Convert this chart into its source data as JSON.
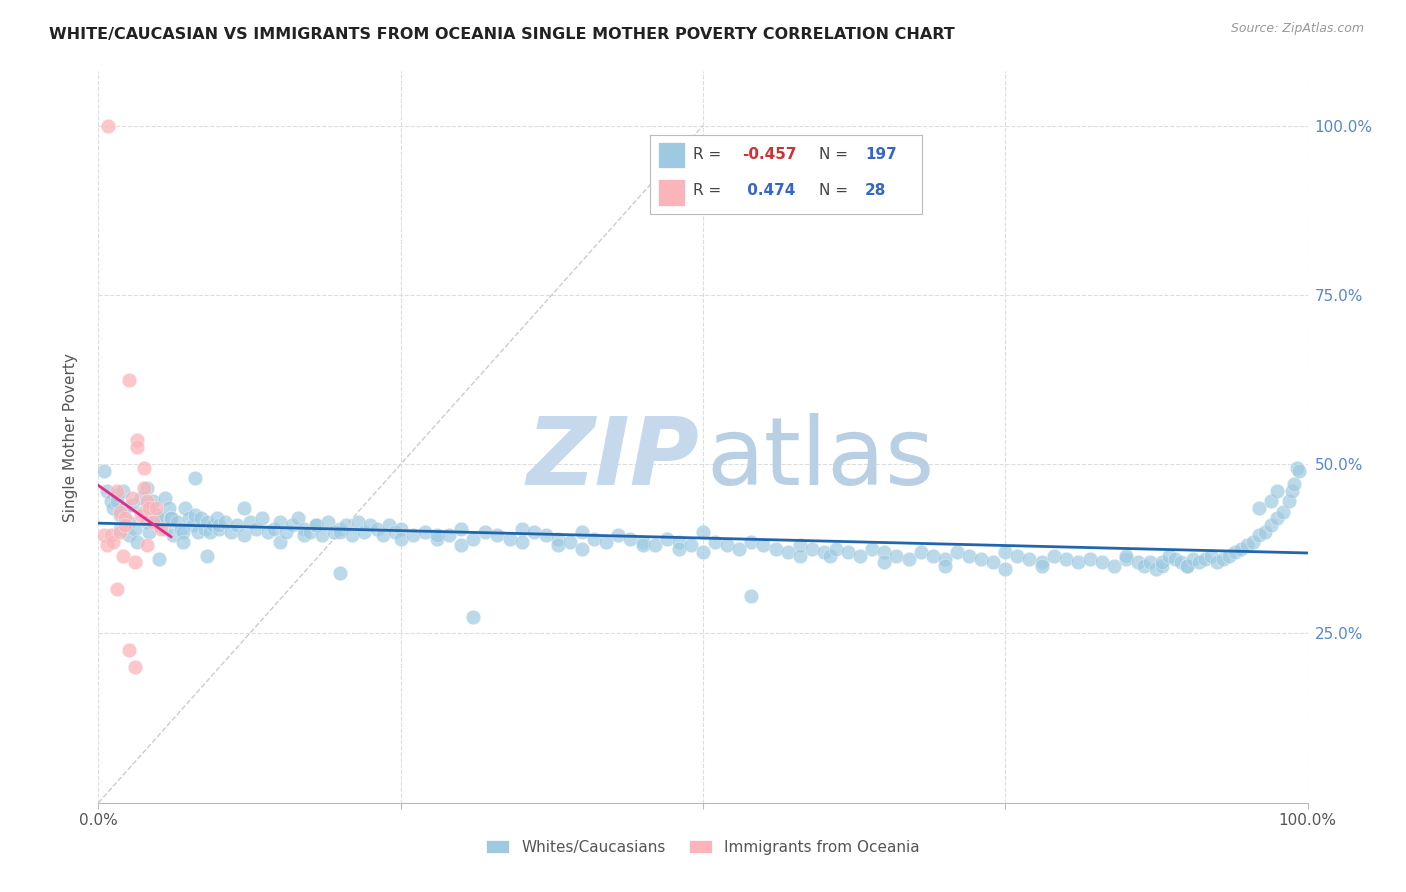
{
  "title": "WHITE/CAUCASIAN VS IMMIGRANTS FROM OCEANIA SINGLE MOTHER POVERTY CORRELATION CHART",
  "source": "Source: ZipAtlas.com",
  "ylabel": "Single Mother Poverty",
  "ytick_labels": [
    "25.0%",
    "50.0%",
    "75.0%",
    "100.0%"
  ],
  "ytick_values": [
    0.25,
    0.5,
    0.75,
    1.0
  ],
  "xlim": [
    0.0,
    1.0
  ],
  "ylim": [
    0.0,
    1.08
  ],
  "legend_label1": "Whites/Caucasians",
  "legend_label2": "Immigrants from Oceania",
  "r1": -0.457,
  "n1": 197,
  "r2": 0.474,
  "n2": 28,
  "blue_color": "#9ecae1",
  "pink_color": "#fbb4b9",
  "blue_line_color": "#2166ac",
  "pink_line_color": "#e7298a",
  "watermark_zip_color": "#c6d9ec",
  "watermark_atlas_color": "#b8cfe4",
  "blue_scatter": [
    [
      0.005,
      0.49
    ],
    [
      0.007,
      0.46
    ],
    [
      0.01,
      0.445
    ],
    [
      0.012,
      0.435
    ],
    [
      0.015,
      0.455
    ],
    [
      0.015,
      0.445
    ],
    [
      0.018,
      0.425
    ],
    [
      0.018,
      0.405
    ],
    [
      0.02,
      0.46
    ],
    [
      0.022,
      0.435
    ],
    [
      0.025,
      0.415
    ],
    [
      0.025,
      0.395
    ],
    [
      0.028,
      0.44
    ],
    [
      0.03,
      0.405
    ],
    [
      0.032,
      0.385
    ],
    [
      0.035,
      0.45
    ],
    [
      0.038,
      0.43
    ],
    [
      0.04,
      0.415
    ],
    [
      0.04,
      0.465
    ],
    [
      0.042,
      0.4
    ],
    [
      0.045,
      0.445
    ],
    [
      0.048,
      0.425
    ],
    [
      0.05,
      0.41
    ],
    [
      0.05,
      0.36
    ],
    [
      0.052,
      0.42
    ],
    [
      0.055,
      0.405
    ],
    [
      0.055,
      0.45
    ],
    [
      0.058,
      0.435
    ],
    [
      0.06,
      0.42
    ],
    [
      0.06,
      0.42
    ],
    [
      0.062,
      0.395
    ],
    [
      0.065,
      0.415
    ],
    [
      0.068,
      0.405
    ],
    [
      0.07,
      0.4
    ],
    [
      0.07,
      0.385
    ],
    [
      0.072,
      0.435
    ],
    [
      0.075,
      0.42
    ],
    [
      0.078,
      0.41
    ],
    [
      0.08,
      0.425
    ],
    [
      0.08,
      0.48
    ],
    [
      0.082,
      0.4
    ],
    [
      0.085,
      0.42
    ],
    [
      0.088,
      0.405
    ],
    [
      0.09,
      0.415
    ],
    [
      0.09,
      0.365
    ],
    [
      0.092,
      0.4
    ],
    [
      0.095,
      0.41
    ],
    [
      0.098,
      0.42
    ],
    [
      0.1,
      0.405
    ],
    [
      0.1,
      0.41
    ],
    [
      0.105,
      0.415
    ],
    [
      0.11,
      0.4
    ],
    [
      0.115,
      0.41
    ],
    [
      0.12,
      0.395
    ],
    [
      0.12,
      0.435
    ],
    [
      0.125,
      0.415
    ],
    [
      0.13,
      0.405
    ],
    [
      0.135,
      0.42
    ],
    [
      0.14,
      0.4
    ],
    [
      0.145,
      0.405
    ],
    [
      0.15,
      0.415
    ],
    [
      0.15,
      0.385
    ],
    [
      0.155,
      0.4
    ],
    [
      0.16,
      0.41
    ],
    [
      0.165,
      0.42
    ],
    [
      0.17,
      0.405
    ],
    [
      0.17,
      0.395
    ],
    [
      0.175,
      0.4
    ],
    [
      0.18,
      0.41
    ],
    [
      0.18,
      0.41
    ],
    [
      0.185,
      0.395
    ],
    [
      0.19,
      0.415
    ],
    [
      0.195,
      0.4
    ],
    [
      0.2,
      0.405
    ],
    [
      0.2,
      0.34
    ],
    [
      0.2,
      0.4
    ],
    [
      0.205,
      0.41
    ],
    [
      0.21,
      0.395
    ],
    [
      0.215,
      0.415
    ],
    [
      0.22,
      0.4
    ],
    [
      0.225,
      0.41
    ],
    [
      0.23,
      0.405
    ],
    [
      0.235,
      0.395
    ],
    [
      0.24,
      0.41
    ],
    [
      0.245,
      0.4
    ],
    [
      0.25,
      0.405
    ],
    [
      0.25,
      0.39
    ],
    [
      0.26,
      0.395
    ],
    [
      0.27,
      0.4
    ],
    [
      0.28,
      0.39
    ],
    [
      0.28,
      0.395
    ],
    [
      0.29,
      0.395
    ],
    [
      0.3,
      0.405
    ],
    [
      0.3,
      0.38
    ],
    [
      0.31,
      0.39
    ],
    [
      0.31,
      0.275
    ],
    [
      0.32,
      0.4
    ],
    [
      0.33,
      0.395
    ],
    [
      0.34,
      0.39
    ],
    [
      0.35,
      0.405
    ],
    [
      0.35,
      0.385
    ],
    [
      0.36,
      0.4
    ],
    [
      0.37,
      0.395
    ],
    [
      0.38,
      0.39
    ],
    [
      0.38,
      0.38
    ],
    [
      0.39,
      0.385
    ],
    [
      0.4,
      0.4
    ],
    [
      0.4,
      0.375
    ],
    [
      0.41,
      0.39
    ],
    [
      0.42,
      0.385
    ],
    [
      0.43,
      0.395
    ],
    [
      0.44,
      0.39
    ],
    [
      0.45,
      0.385
    ],
    [
      0.45,
      0.38
    ],
    [
      0.46,
      0.38
    ],
    [
      0.47,
      0.39
    ],
    [
      0.48,
      0.385
    ],
    [
      0.48,
      0.375
    ],
    [
      0.49,
      0.38
    ],
    [
      0.5,
      0.4
    ],
    [
      0.5,
      0.37
    ],
    [
      0.51,
      0.385
    ],
    [
      0.52,
      0.38
    ],
    [
      0.53,
      0.375
    ],
    [
      0.54,
      0.385
    ],
    [
      0.54,
      0.305
    ],
    [
      0.55,
      0.38
    ],
    [
      0.56,
      0.375
    ],
    [
      0.57,
      0.37
    ],
    [
      0.58,
      0.38
    ],
    [
      0.58,
      0.365
    ],
    [
      0.59,
      0.375
    ],
    [
      0.6,
      0.37
    ],
    [
      0.605,
      0.365
    ],
    [
      0.61,
      0.375
    ],
    [
      0.62,
      0.37
    ],
    [
      0.63,
      0.365
    ],
    [
      0.64,
      0.375
    ],
    [
      0.65,
      0.37
    ],
    [
      0.65,
      0.355
    ],
    [
      0.66,
      0.365
    ],
    [
      0.67,
      0.36
    ],
    [
      0.68,
      0.37
    ],
    [
      0.69,
      0.365
    ],
    [
      0.7,
      0.36
    ],
    [
      0.7,
      0.35
    ],
    [
      0.71,
      0.37
    ],
    [
      0.72,
      0.365
    ],
    [
      0.73,
      0.36
    ],
    [
      0.74,
      0.355
    ],
    [
      0.75,
      0.37
    ],
    [
      0.75,
      0.345
    ],
    [
      0.76,
      0.365
    ],
    [
      0.77,
      0.36
    ],
    [
      0.78,
      0.355
    ],
    [
      0.78,
      0.35
    ],
    [
      0.79,
      0.365
    ],
    [
      0.8,
      0.36
    ],
    [
      0.81,
      0.355
    ],
    [
      0.82,
      0.36
    ],
    [
      0.83,
      0.355
    ],
    [
      0.84,
      0.35
    ],
    [
      0.85,
      0.36
    ],
    [
      0.85,
      0.365
    ],
    [
      0.86,
      0.355
    ],
    [
      0.865,
      0.35
    ],
    [
      0.87,
      0.355
    ],
    [
      0.875,
      0.345
    ],
    [
      0.88,
      0.35
    ],
    [
      0.88,
      0.355
    ],
    [
      0.885,
      0.365
    ],
    [
      0.89,
      0.36
    ],
    [
      0.895,
      0.355
    ],
    [
      0.9,
      0.35
    ],
    [
      0.9,
      0.35
    ],
    [
      0.905,
      0.36
    ],
    [
      0.91,
      0.355
    ],
    [
      0.915,
      0.36
    ],
    [
      0.92,
      0.365
    ],
    [
      0.925,
      0.355
    ],
    [
      0.93,
      0.36
    ],
    [
      0.935,
      0.365
    ],
    [
      0.94,
      0.37
    ],
    [
      0.945,
      0.375
    ],
    [
      0.95,
      0.38
    ],
    [
      0.955,
      0.385
    ],
    [
      0.96,
      0.395
    ],
    [
      0.96,
      0.435
    ],
    [
      0.965,
      0.4
    ],
    [
      0.97,
      0.41
    ],
    [
      0.97,
      0.445
    ],
    [
      0.975,
      0.42
    ],
    [
      0.975,
      0.46
    ],
    [
      0.98,
      0.43
    ],
    [
      0.985,
      0.445
    ],
    [
      0.987,
      0.46
    ],
    [
      0.989,
      0.47
    ],
    [
      0.991,
      0.495
    ],
    [
      0.993,
      0.49
    ]
  ],
  "pink_scatter": [
    [
      0.005,
      0.395
    ],
    [
      0.007,
      0.38
    ],
    [
      0.008,
      1.0
    ],
    [
      0.01,
      0.395
    ],
    [
      0.012,
      0.385
    ],
    [
      0.015,
      0.46
    ],
    [
      0.015,
      0.315
    ],
    [
      0.018,
      0.43
    ],
    [
      0.018,
      0.4
    ],
    [
      0.02,
      0.365
    ],
    [
      0.022,
      0.42
    ],
    [
      0.022,
      0.41
    ],
    [
      0.025,
      0.625
    ],
    [
      0.025,
      0.225
    ],
    [
      0.028,
      0.45
    ],
    [
      0.03,
      0.355
    ],
    [
      0.03,
      0.2
    ],
    [
      0.032,
      0.535
    ],
    [
      0.032,
      0.525
    ],
    [
      0.035,
      0.425
    ],
    [
      0.038,
      0.495
    ],
    [
      0.038,
      0.465
    ],
    [
      0.04,
      0.445
    ],
    [
      0.04,
      0.38
    ],
    [
      0.042,
      0.435
    ],
    [
      0.045,
      0.415
    ],
    [
      0.048,
      0.435
    ],
    [
      0.052,
      0.405
    ]
  ]
}
